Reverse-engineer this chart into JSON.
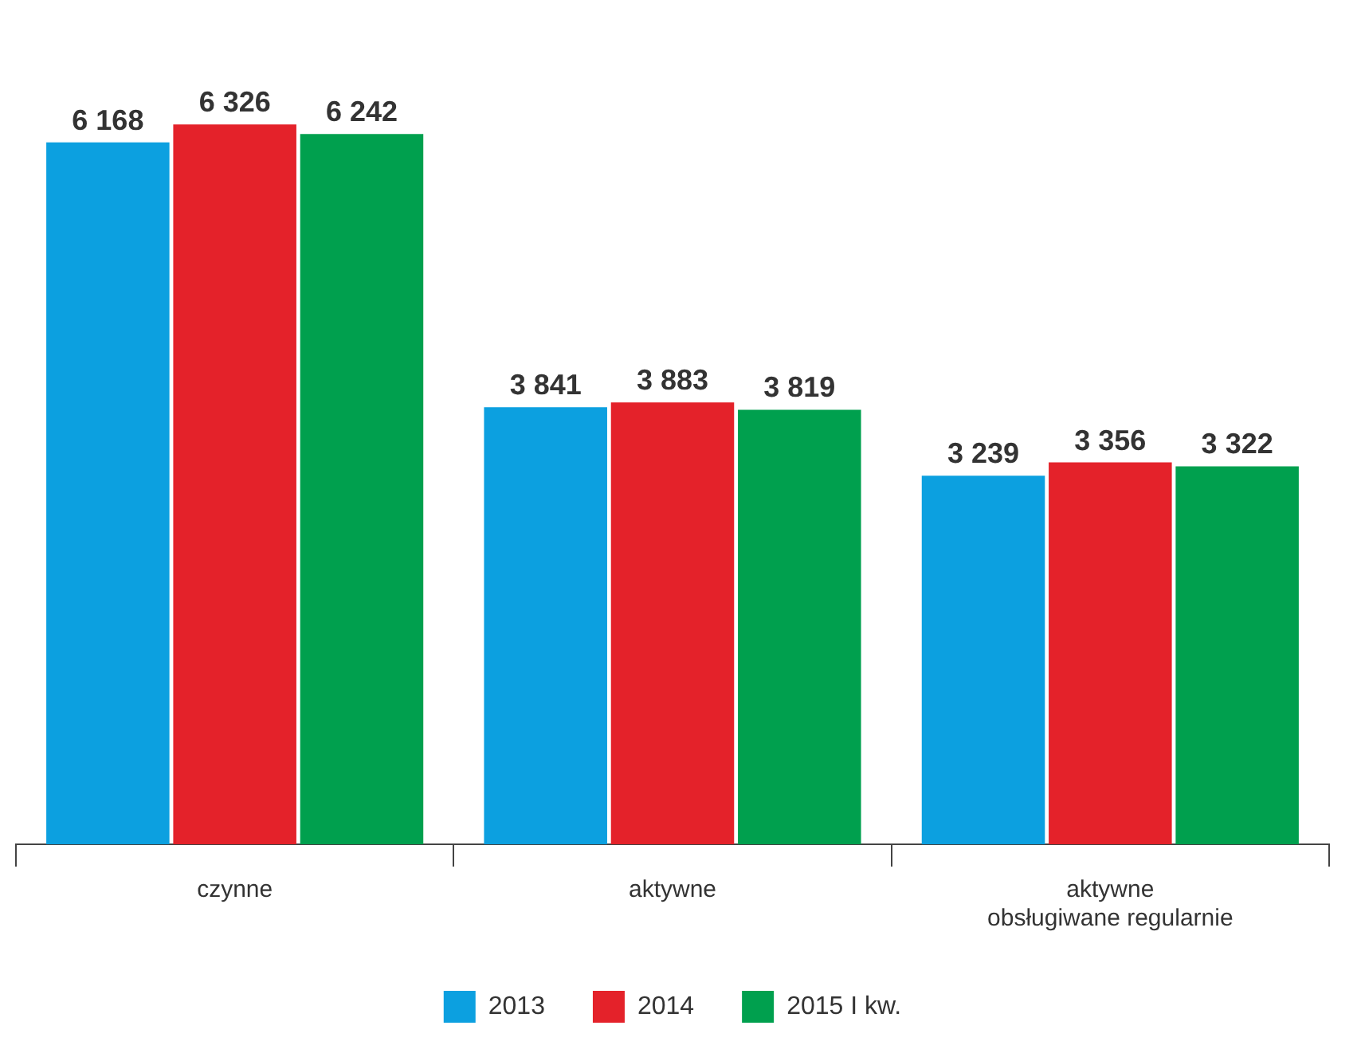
{
  "chart_data": {
    "type": "bar",
    "categories": [
      "czynne",
      "aktywne",
      "aktywne\nobsługiwane regularnie"
    ],
    "series": [
      {
        "name": "2013",
        "color": "#0ca0e0",
        "values": [
          6168,
          3841,
          3239
        ],
        "value_labels": [
          "6 168",
          "3 841",
          "3 239"
        ]
      },
      {
        "name": "2014",
        "color": "#e4222a",
        "values": [
          6326,
          3883,
          3356
        ],
        "value_labels": [
          "6 326",
          "3 883",
          "3 356"
        ]
      },
      {
        "name": "2015 I kw.",
        "color": "#00a04e",
        "values": [
          6242,
          3819,
          3322
        ],
        "value_labels": [
          "6 242",
          "3 819",
          "3 322"
        ]
      }
    ],
    "legend": "bottom",
    "grid": false
  }
}
